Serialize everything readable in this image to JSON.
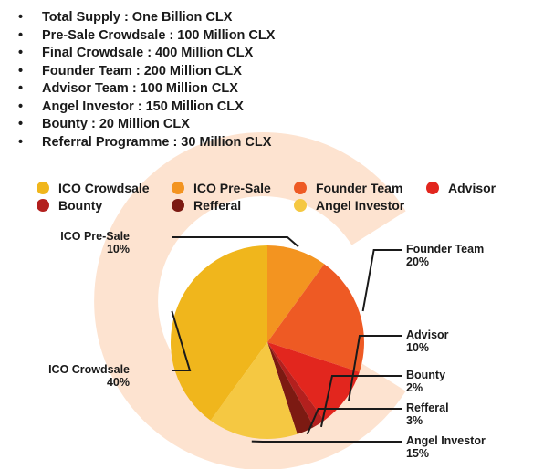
{
  "supply_list": [
    "Total Supply : One Billion CLX",
    "Pre-Sale Crowdsale : 100 Million CLX",
    "Final Crowdsale : 400 Million CLX",
    "Founder Team : 200 Million CLX",
    "Advisor Team : 100 Million CLX",
    "Angel Investor : 150 Million CLX",
    "Bounty : 20 Million CLX",
    "Referral Programme : 30 Million CLX"
  ],
  "bullet": "•",
  "colors": {
    "watermark": "#fde3d0",
    "leader_line": "#1a1a1a"
  },
  "chart_data": {
    "type": "pie",
    "title": "",
    "legend": [
      {
        "label": "ICO Crowdsale",
        "color": "#f0b61c"
      },
      {
        "label": "ICO Pre-Sale",
        "color": "#f39420"
      },
      {
        "label": "Founder Team",
        "color": "#ee5a24"
      },
      {
        "label": "Advisor",
        "color": "#e2261e"
      },
      {
        "label": "Bounty",
        "color": "#b3201e"
      },
      {
        "label": "Refferal",
        "color": "#7c1a12"
      },
      {
        "label": "Angel Investor",
        "color": "#f5c842"
      }
    ],
    "legend_position": "top",
    "slices": [
      {
        "name": "ICO Pre-Sale",
        "value": 10,
        "color": "#f39420",
        "label": "ICO Pre-Sale",
        "pct": "10%"
      },
      {
        "name": "Founder Team",
        "value": 20,
        "color": "#ee5a24",
        "label": "Founder Team",
        "pct": "20%"
      },
      {
        "name": "Advisor",
        "value": 10,
        "color": "#e2261e",
        "label": "Advisor",
        "pct": "10%"
      },
      {
        "name": "Bounty",
        "value": 2,
        "color": "#b3201e",
        "label": "Bounty",
        "pct": "2%"
      },
      {
        "name": "Refferal",
        "value": 3,
        "color": "#7c1a12",
        "label": "Refferal",
        "pct": "3%"
      },
      {
        "name": "Angel Investor",
        "value": 15,
        "color": "#f5c842",
        "label": "Angel Investor",
        "pct": "15%"
      },
      {
        "name": "ICO Crowdsale",
        "value": 40,
        "color": "#f0b61c",
        "label": "ICO Crowdsale",
        "pct": "40%"
      }
    ]
  }
}
